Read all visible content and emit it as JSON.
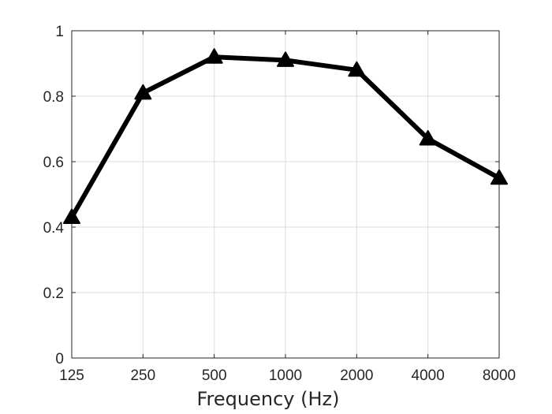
{
  "chart_data": {
    "type": "line",
    "title": "",
    "xlabel": "Frequency (Hz)",
    "ylabel": "",
    "categories": [
      "125",
      "250",
      "500",
      "1000",
      "2000",
      "4000",
      "8000"
    ],
    "series": [
      {
        "values": [
          0.43,
          0.81,
          0.92,
          0.91,
          0.88,
          0.67,
          0.55
        ]
      }
    ],
    "ylim": [
      0,
      1
    ],
    "yticks": [
      "0",
      "0.2",
      "0.4",
      "0.6",
      "0.8",
      "1"
    ],
    "grid": true,
    "marker": "triangle",
    "line_color": "#000000",
    "grid_color": "#dcdcdc"
  }
}
